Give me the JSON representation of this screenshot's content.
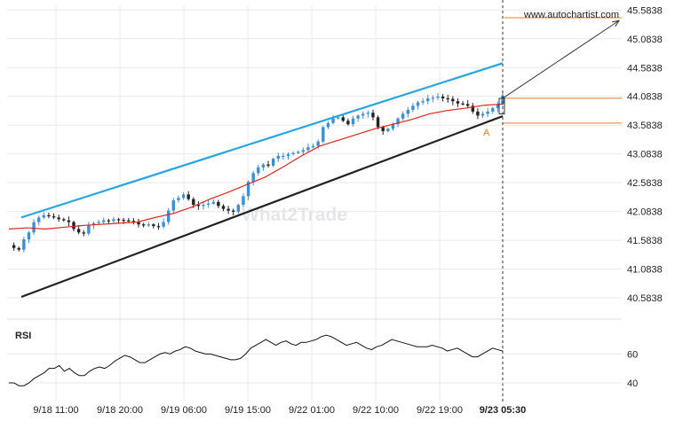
{
  "watermark": "What2Trade",
  "source_label": "www.autochartist.com",
  "pattern_point_label": "A",
  "indicator_label": "RSI",
  "colors": {
    "up_candle": "#3b8fd6",
    "down_candle": "#222222",
    "moving_average": "#e0271b",
    "resistance_line": "#25a6e0",
    "support_line": "#222222",
    "level_line": "#ef7a22",
    "grid": "#e9e9e9",
    "rsi_line": "#111111"
  },
  "chart_data": [
    {
      "type": "candlestick",
      "x_tick_labels": [
        "9/18 11:00",
        "9/18 20:00",
        "9/19 06:00",
        "9/19 15:00",
        "9/22 01:00",
        "9/22 10:00",
        "9/22 19:00",
        "9/23 05:30"
      ],
      "y_tick_labels": [
        "45.5838",
        "45.0838",
        "44.5838",
        "44.0838",
        "43.5838",
        "43.0838",
        "42.5838",
        "42.0838",
        "41.5838",
        "41.0838",
        "40.5838"
      ],
      "ylim": [
        40.4,
        45.65
      ],
      "price_path": [
        41.5,
        41.45,
        41.42,
        41.6,
        41.72,
        41.9,
        41.98,
        42.02,
        42.0,
        41.98,
        41.95,
        41.93,
        41.9,
        41.78,
        41.72,
        41.7,
        41.85,
        41.88,
        41.9,
        41.93,
        41.92,
        41.95,
        41.94,
        41.93,
        41.92,
        41.9,
        41.86,
        41.84,
        41.86,
        41.83,
        41.82,
        41.9,
        42.1,
        42.28,
        42.32,
        42.38,
        42.3,
        42.2,
        42.18,
        42.2,
        42.22,
        42.25,
        42.18,
        42.13,
        42.1,
        42.08,
        42.2,
        42.35,
        42.6,
        42.75,
        42.85,
        42.9,
        42.88,
        43.0,
        43.05,
        43.05,
        43.08,
        43.1,
        43.12,
        43.15,
        43.2,
        43.22,
        43.3,
        43.55,
        43.62,
        43.7,
        43.72,
        43.66,
        43.6,
        43.7,
        43.75,
        43.78,
        43.8,
        43.72,
        43.55,
        43.48,
        43.52,
        43.6,
        43.7,
        43.78,
        43.85,
        43.92,
        43.98,
        44.0,
        44.05,
        44.06,
        44.08,
        44.05,
        44.04,
        44.0,
        43.96,
        43.95,
        43.92,
        43.82,
        43.75,
        43.78,
        43.82,
        43.88,
        43.95,
        44.1
      ],
      "moving_average": {
        "start": 41.78,
        "values": [
          41.78,
          41.8,
          41.78,
          41.81,
          41.84,
          41.86,
          41.88,
          41.9,
          41.98,
          42.05,
          42.16,
          42.3,
          42.42,
          42.55,
          42.68,
          42.86,
          43.05,
          43.22,
          43.32,
          43.42,
          43.52,
          43.6,
          43.68,
          43.78,
          43.84,
          43.88,
          43.93,
          43.95
        ]
      },
      "resistance_line": {
        "from": [
          "9/18 08:00",
          41.98
        ],
        "to": [
          "9/23 05:30",
          44.66
        ]
      },
      "support_line": {
        "from": [
          "9/18 08:00",
          40.6
        ],
        "to": [
          "9/23 05:30",
          43.74
        ]
      },
      "projection": {
        "from": 44.05,
        "to": 45.4
      },
      "levels": [
        44.05,
        43.62
      ],
      "pattern_point": {
        "label": "A",
        "price": 43.62
      }
    },
    {
      "type": "line",
      "name": "RSI",
      "y_tick_labels": [
        "60",
        "40"
      ],
      "ylim": [
        32,
        78
      ],
      "values": [
        40,
        40,
        38,
        38,
        40,
        43,
        45,
        47,
        50,
        50,
        52,
        48,
        50,
        47,
        45,
        45,
        48,
        50,
        51,
        50,
        52,
        55,
        57,
        59,
        58,
        56,
        54,
        54,
        56,
        58,
        60,
        61,
        60,
        62,
        63,
        65,
        64,
        62,
        61,
        60,
        60,
        59,
        58,
        57,
        56,
        56,
        57,
        60,
        64,
        66,
        68,
        70,
        68,
        66,
        68,
        69,
        67,
        66,
        68,
        68,
        69,
        70,
        72,
        73,
        72,
        70,
        68,
        66,
        67,
        68,
        66,
        64,
        63,
        65,
        66,
        68,
        70,
        69,
        68,
        67,
        66,
        65,
        65,
        65,
        66,
        65,
        64,
        62,
        63,
        64,
        62,
        60,
        58,
        58,
        60,
        62,
        64,
        63,
        62
      ]
    }
  ]
}
